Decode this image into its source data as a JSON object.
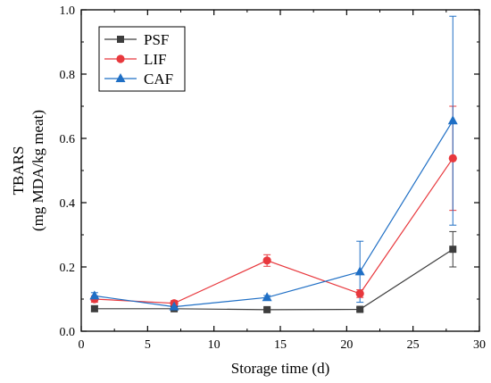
{
  "chart_data": {
    "type": "line",
    "title": "",
    "xlabel": "Storage time (d)",
    "ylabel_lines": [
      "TBARS",
      "(mg MDA/kg meat)"
    ],
    "xlim": [
      0,
      30
    ],
    "ylim": [
      0.0,
      1.0
    ],
    "xticks": [
      "0",
      "5",
      "10",
      "15",
      "20",
      "25",
      "30"
    ],
    "yticks": [
      "0.0",
      "0.2",
      "0.4",
      "0.6",
      "0.8",
      "1.0"
    ],
    "grid": false,
    "legend_position": "top-left",
    "series": [
      {
        "name": "PSF",
        "color": "#3d3d3d",
        "marker": "square",
        "x": [
          1,
          7,
          14,
          21,
          28
        ],
        "y": [
          0.07,
          0.07,
          0.067,
          0.068,
          0.255
        ],
        "err": [
          0.008,
          0.006,
          0.005,
          0.006,
          0.055
        ]
      },
      {
        "name": "LIF",
        "color": "#e8383d",
        "marker": "circle",
        "x": [
          1,
          7,
          14,
          21,
          28
        ],
        "y": [
          0.1,
          0.087,
          0.22,
          0.117,
          0.538
        ],
        "err": [
          0.01,
          0.008,
          0.018,
          0.012,
          0.162
        ]
      },
      {
        "name": "CAF",
        "color": "#1f6fc5",
        "marker": "triangle",
        "x": [
          1,
          7,
          14,
          21,
          28
        ],
        "y": [
          0.11,
          0.076,
          0.105,
          0.185,
          0.655
        ],
        "err": [
          0.01,
          0.006,
          0.006,
          0.095,
          0.325
        ]
      }
    ]
  }
}
